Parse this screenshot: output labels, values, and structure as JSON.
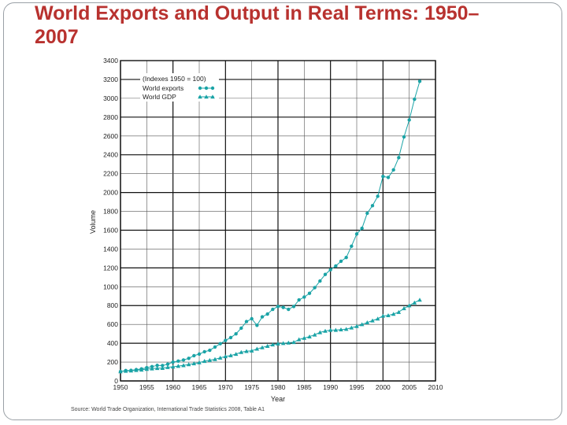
{
  "slide": {
    "title": "World Exports and Output in Real Terms: 1950–2007",
    "source": "Source: World Trade Organization, International Trade Statistics 2008, Table A1"
  },
  "colors": {
    "title": "#b8322f",
    "series": "#1aa3a6",
    "grid_minor": "#555555",
    "grid_major": "#111111",
    "text": "#222222"
  },
  "chart_data": {
    "type": "line",
    "xlabel": "Year",
    "ylabel": "Volume",
    "xlim": [
      1950,
      2010
    ],
    "ylim": [
      0,
      3400
    ],
    "x_ticks": [
      1950,
      1955,
      1960,
      1965,
      1970,
      1975,
      1980,
      1985,
      1990,
      1995,
      2000,
      2005,
      2010
    ],
    "y_ticks": [
      0,
      200,
      400,
      600,
      800,
      1000,
      1200,
      1400,
      1600,
      1800,
      2000,
      2200,
      2400,
      2600,
      2800,
      3000,
      3200,
      3400
    ],
    "legend_title": "(Indexes 1950 = 100)",
    "legend_position": "top-left",
    "series": [
      {
        "name": "World exports",
        "marker": "circle",
        "x": [
          1950,
          1951,
          1952,
          1953,
          1954,
          1955,
          1956,
          1957,
          1958,
          1959,
          1960,
          1961,
          1962,
          1963,
          1964,
          1965,
          1966,
          1967,
          1968,
          1969,
          1970,
          1971,
          1972,
          1973,
          1974,
          1975,
          1976,
          1977,
          1978,
          1979,
          1980,
          1981,
          1982,
          1983,
          1984,
          1985,
          1986,
          1987,
          1988,
          1989,
          1990,
          1991,
          1992,
          1993,
          1994,
          1995,
          1996,
          1997,
          1998,
          1999,
          2000,
          2001,
          2002,
          2003,
          2004,
          2005,
          2006,
          2007
        ],
        "values": [
          100,
          110,
          112,
          120,
          128,
          140,
          152,
          165,
          163,
          178,
          200,
          210,
          222,
          240,
          268,
          285,
          310,
          325,
          360,
          395,
          430,
          460,
          500,
          560,
          630,
          660,
          590,
          680,
          710,
          760,
          790,
          780,
          760,
          790,
          860,
          890,
          930,
          990,
          1060,
          1130,
          1180,
          1220,
          1270,
          1310,
          1430,
          1560,
          1620,
          1780,
          1860,
          1960,
          2170,
          2160,
          2240,
          2370,
          2590,
          2770,
          2990,
          3180
        ]
      },
      {
        "name": "World GDP",
        "marker": "triangle",
        "x": [
          1950,
          1951,
          1952,
          1953,
          1954,
          1955,
          1956,
          1957,
          1958,
          1959,
          1960,
          1961,
          1962,
          1963,
          1964,
          1965,
          1966,
          1967,
          1968,
          1969,
          1970,
          1971,
          1972,
          1973,
          1974,
          1975,
          1976,
          1977,
          1978,
          1979,
          1980,
          1981,
          1982,
          1983,
          1984,
          1985,
          1986,
          1987,
          1988,
          1989,
          1990,
          1991,
          1992,
          1993,
          1994,
          1995,
          1996,
          1997,
          1998,
          1999,
          2000,
          2001,
          2002,
          2003,
          2004,
          2005,
          2006,
          2007
        ],
        "values": [
          100,
          105,
          108,
          114,
          118,
          125,
          130,
          135,
          136,
          145,
          150,
          158,
          165,
          175,
          185,
          195,
          210,
          220,
          230,
          245,
          260,
          270,
          285,
          305,
          315,
          320,
          340,
          355,
          370,
          385,
          395,
          400,
          405,
          410,
          440,
          455,
          470,
          490,
          515,
          530,
          540,
          540,
          545,
          550,
          565,
          580,
          600,
          620,
          640,
          660,
          690,
          695,
          710,
          730,
          770,
          800,
          830,
          860
        ]
      }
    ]
  }
}
